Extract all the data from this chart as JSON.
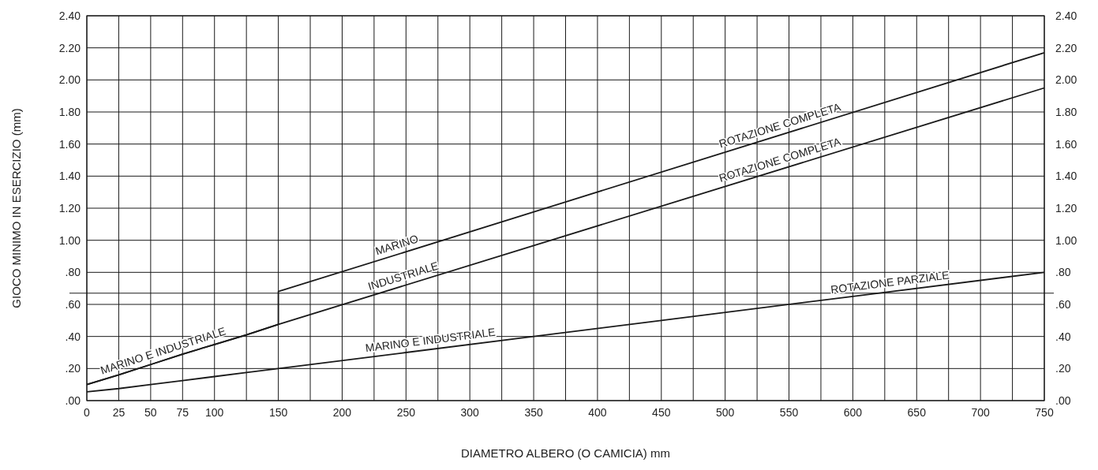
{
  "chart_data": {
    "type": "line",
    "xlabel": "DIAMETRO ALBERO (O CAMICIA) mm",
    "ylabel": "GIOCO MINIMO IN ESERCIZIO (mm)",
    "series": [
      {
        "color": "#1a1a1a",
        "x": [
          0,
          25,
          50,
          75,
          100,
          125,
          150,
          150,
          750
        ],
        "values": [
          0.1,
          0.16,
          0.225,
          0.29,
          0.35,
          0.41,
          0.475,
          0.68,
          2.17
        ]
      },
      {
        "color": "#1a1a1a",
        "x": [
          0,
          25,
          50,
          75,
          100,
          125,
          150,
          750
        ],
        "values": [
          0.1,
          0.16,
          0.225,
          0.29,
          0.35,
          0.41,
          0.475,
          1.95
        ]
      },
      {
        "color": "#1a1a1a",
        "x": [
          0,
          25,
          50,
          75,
          100,
          125,
          150,
          250,
          350,
          450,
          600,
          750
        ],
        "values": [
          0.055,
          0.075,
          0.1,
          0.125,
          0.15,
          0.175,
          0.2,
          0.3,
          0.4,
          0.5,
          0.65,
          0.8
        ]
      }
    ],
    "xlim": [
      0,
      750
    ],
    "xticks": [
      0,
      25,
      50,
      75,
      100,
      {
        "value": 125,
        "label": null
      },
      150,
      {
        "value": 175,
        "label": null
      },
      200,
      {
        "value": 225,
        "label": null
      },
      250,
      {
        "value": 275,
        "label": null
      },
      300,
      {
        "value": 325,
        "label": null
      },
      350,
      {
        "value": 375,
        "label": null
      },
      400,
      {
        "value": 425,
        "label": null
      },
      450,
      {
        "value": 475,
        "label": null
      },
      500,
      {
        "value": 525,
        "label": null
      },
      550,
      {
        "value": 575,
        "label": null
      },
      600,
      {
        "value": 625,
        "label": null
      },
      650,
      {
        "value": 675,
        "label": null
      },
      700,
      {
        "value": 725,
        "label": null
      },
      750
    ],
    "ylim": [
      0,
      2.4
    ],
    "yticks": [
      {
        "value": 0,
        "label": ".00"
      },
      {
        "value": 0.2,
        "label": ".20"
      },
      {
        "value": 0.4,
        "label": ".40"
      },
      {
        "value": 0.6,
        "label": ".60"
      },
      {
        "value": 0.8,
        "label": ".80"
      },
      {
        "value": 1.0,
        "label": "1.00"
      },
      {
        "value": 1.2,
        "label": "1.20"
      },
      {
        "value": 1.4,
        "label": "1.40"
      },
      {
        "value": 1.6,
        "label": "1.60"
      },
      {
        "value": 1.8,
        "label": "1.80"
      },
      {
        "value": 2.0,
        "label": "2.00"
      },
      {
        "value": 2.2,
        "label": "2.20"
      },
      {
        "value": 2.4,
        "label": "2.40"
      }
    ],
    "y2lim": [
      0,
      2.4
    ],
    "y2ticks": [
      {
        "value": 0,
        "label": ".00"
      },
      {
        "value": 0.2,
        "label": ".20"
      },
      {
        "value": 0.4,
        "label": ".40"
      },
      {
        "value": 0.6,
        "label": ".60"
      },
      {
        "value": 0.8,
        "label": ".80"
      },
      {
        "value": 1.0,
        "label": "1.00"
      },
      {
        "value": 1.2,
        "label": "1.20"
      },
      {
        "value": 1.4,
        "label": "1.40"
      },
      {
        "value": 1.6,
        "label": "1.60"
      },
      {
        "value": 1.8,
        "label": "1.80"
      },
      {
        "value": 2.0,
        "label": "2.00"
      },
      {
        "value": 2.2,
        "label": "2.20"
      },
      {
        "value": 2.4,
        "label": "2.40"
      }
    ],
    "grid": true,
    "ref_lines": [
      {
        "axis": "y",
        "value": 0.67,
        "color": "#1a1a1a"
      }
    ],
    "annotations": [
      {
        "text": "MARINO E INDUSTRIALE",
        "x": 62,
        "y": 0.256
      },
      {
        "text": "MARINO",
        "x": 245,
        "y": 0.916
      },
      {
        "text": "INDUSTRIALE",
        "x": 250,
        "y": 0.721
      },
      {
        "text": "MARINO E INDUSTRIALE",
        "x": 270,
        "y": 0.32
      },
      {
        "text": "ROTAZIONE COMPLETA",
        "x": 545,
        "y": 1.661
      },
      {
        "text": "ROTAZIONE COMPLETA",
        "x": 545,
        "y": 1.446
      },
      {
        "text": "ROTAZIONE PARZIALE",
        "x": 630,
        "y": 0.68
      }
    ]
  }
}
